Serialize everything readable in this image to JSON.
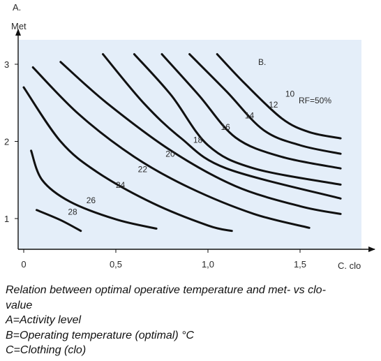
{
  "chart_data": {
    "type": "line",
    "panel_label": "A.",
    "ylabel": "Met",
    "xlabel": "C.  clo",
    "series_header": "B.",
    "annotation": "RF=50%",
    "xlim": [
      0,
      1.8
    ],
    "ylim": [
      0.65,
      3.3
    ],
    "xticks": [
      0,
      0.5,
      1.0,
      1.5
    ],
    "xtick_labels": [
      "0",
      "0,5",
      "1,0",
      "1,5"
    ],
    "yticks": [
      1,
      2,
      3
    ],
    "ytick_labels": [
      "1",
      "2",
      "3"
    ],
    "background": "#e4eef9",
    "line_color": "#111111",
    "series": [
      {
        "name": "10",
        "x": [
          1.05,
          1.2,
          1.4,
          1.55,
          1.72
        ],
        "y": [
          3.13,
          2.75,
          2.3,
          2.12,
          2.04
        ]
      },
      {
        "name": "12",
        "x": [
          0.9,
          1.1,
          1.3,
          1.5,
          1.72
        ],
        "y": [
          3.13,
          2.65,
          2.15,
          1.95,
          1.84
        ]
      },
      {
        "name": "14",
        "x": [
          0.75,
          0.95,
          1.15,
          1.4,
          1.72
        ],
        "y": [
          3.13,
          2.6,
          2.05,
          1.8,
          1.65
        ]
      },
      {
        "name": "16",
        "x": [
          0.6,
          0.8,
          1.0,
          1.25,
          1.72
        ],
        "y": [
          3.13,
          2.6,
          1.95,
          1.65,
          1.44
        ]
      },
      {
        "name": "18",
        "x": [
          0.43,
          0.65,
          0.85,
          1.1,
          1.72
        ],
        "y": [
          3.13,
          2.5,
          2.05,
          1.65,
          1.26
        ]
      },
      {
        "name": "20",
        "x": [
          0.2,
          0.45,
          0.8,
          1.15,
          1.5,
          1.72
        ],
        "y": [
          3.03,
          2.5,
          1.88,
          1.42,
          1.16,
          1.06
        ]
      },
      {
        "name": "22",
        "x": [
          0.05,
          0.3,
          0.6,
          0.9,
          1.25,
          1.55
        ],
        "y": [
          2.96,
          2.35,
          1.8,
          1.4,
          1.06,
          0.88
        ]
      },
      {
        "name": "24",
        "x": [
          0,
          0.2,
          0.4,
          0.7,
          1.0,
          1.13
        ],
        "y": [
          2.7,
          2.0,
          1.6,
          1.2,
          0.91,
          0.84
        ]
      },
      {
        "name": "26",
        "x": [
          0.04,
          0.1,
          0.25,
          0.5,
          0.72
        ],
        "y": [
          1.88,
          1.5,
          1.22,
          0.99,
          0.87
        ]
      },
      {
        "name": "28",
        "x": [
          0.07,
          0.2,
          0.31
        ],
        "y": [
          1.11,
          0.98,
          0.84
        ]
      }
    ],
    "label_positions": [
      {
        "name": "10",
        "x": 1.42,
        "y": 2.58
      },
      {
        "name": "12",
        "x": 1.33,
        "y": 2.44
      },
      {
        "name": "14",
        "x": 1.2,
        "y": 2.3
      },
      {
        "name": "16",
        "x": 1.07,
        "y": 2.15
      },
      {
        "name": "18",
        "x": 0.92,
        "y": 1.98
      },
      {
        "name": "20",
        "x": 0.77,
        "y": 1.8
      },
      {
        "name": "22",
        "x": 0.62,
        "y": 1.6
      },
      {
        "name": "24",
        "x": 0.5,
        "y": 1.4
      },
      {
        "name": "26",
        "x": 0.34,
        "y": 1.2
      },
      {
        "name": "28",
        "x": 0.24,
        "y": 1.05
      }
    ]
  },
  "caption": {
    "line1": "Relation between optimal operative temperature and met- vs clo-",
    "line2": "value",
    "line3": "A=Activity level",
    "line4": "B=Operating temperature (optimal) °C",
    "line5": "C=Clothing (clo)"
  }
}
